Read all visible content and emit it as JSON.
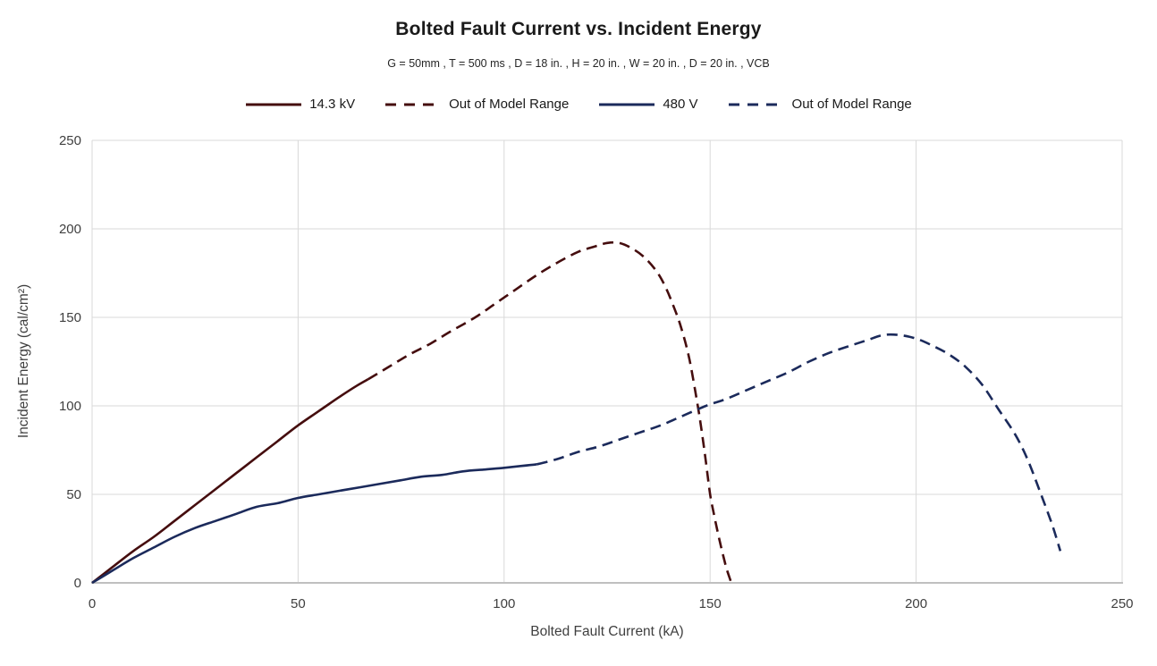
{
  "chart_data": {
    "type": "line",
    "title": "Bolted Fault Current vs. Incident Energy",
    "subtitle": "G = 50mm , T = 500 ms , D = 18 in. , H = 20 in. , W = 20 in. , D = 20 in. , VCB",
    "xlabel": "Bolted Fault Current (kA)",
    "ylabel": "Incident Energy (cal/cm²)",
    "xlim": [
      0,
      250
    ],
    "ylim": [
      0,
      250
    ],
    "xticks": [
      0,
      50,
      100,
      150,
      200,
      250
    ],
    "yticks": [
      0,
      50,
      100,
      150,
      200,
      250
    ],
    "grid": true,
    "legend_position": "top",
    "colors": {
      "dark_red": "#450d0e",
      "dark_blue": "#1b2a5b",
      "gridline": "#d9d9d9",
      "axis_line": "#c0c0c0",
      "tick_text": "#3f3f3f",
      "title_text": "#1a1a1a"
    },
    "series": [
      {
        "name": "14.3 kV",
        "color_key": "dark_red",
        "style": "solid",
        "points": [
          [
            0,
            0
          ],
          [
            5,
            9
          ],
          [
            10,
            18
          ],
          [
            15,
            26
          ],
          [
            20,
            35
          ],
          [
            25,
            44
          ],
          [
            30,
            53
          ],
          [
            35,
            62
          ],
          [
            40,
            71
          ],
          [
            45,
            80
          ],
          [
            50,
            89
          ],
          [
            55,
            97
          ],
          [
            60,
            105
          ],
          [
            64,
            111
          ],
          [
            67,
            115
          ]
        ]
      },
      {
        "name": "Out of Model Range",
        "color_key": "dark_red",
        "style": "dashed",
        "points": [
          [
            67,
            115
          ],
          [
            72,
            122
          ],
          [
            77,
            129
          ],
          [
            82,
            135
          ],
          [
            87,
            142
          ],
          [
            93,
            150
          ],
          [
            98,
            158
          ],
          [
            103,
            166
          ],
          [
            108,
            174
          ],
          [
            113,
            181
          ],
          [
            118,
            187
          ],
          [
            122,
            190
          ],
          [
            125,
            192
          ],
          [
            128,
            192
          ],
          [
            131,
            189
          ],
          [
            134,
            184
          ],
          [
            137,
            176
          ],
          [
            139,
            168
          ],
          [
            141,
            157
          ],
          [
            143,
            144
          ],
          [
            145,
            126
          ],
          [
            147,
            100
          ],
          [
            148,
            85
          ],
          [
            149,
            68
          ],
          [
            150,
            50
          ],
          [
            151,
            38
          ],
          [
            152,
            27
          ],
          [
            153,
            17
          ],
          [
            154,
            8
          ],
          [
            155,
            1
          ]
        ]
      },
      {
        "name": "480 V",
        "color_key": "dark_blue",
        "style": "solid",
        "points": [
          [
            0,
            0
          ],
          [
            5,
            7
          ],
          [
            10,
            14
          ],
          [
            15,
            20
          ],
          [
            20,
            26
          ],
          [
            25,
            31
          ],
          [
            30,
            35
          ],
          [
            35,
            39
          ],
          [
            40,
            43
          ],
          [
            45,
            45
          ],
          [
            50,
            48
          ],
          [
            55,
            50
          ],
          [
            60,
            52
          ],
          [
            65,
            54
          ],
          [
            70,
            56
          ],
          [
            75,
            58
          ],
          [
            80,
            60
          ],
          [
            85,
            61
          ],
          [
            90,
            63
          ],
          [
            95,
            64
          ],
          [
            100,
            65
          ],
          [
            104,
            66
          ],
          [
            108,
            67
          ]
        ]
      },
      {
        "name": "Out of Model Range",
        "color_key": "dark_blue",
        "style": "dashed",
        "points": [
          [
            108,
            67
          ],
          [
            113,
            70
          ],
          [
            118,
            74
          ],
          [
            123,
            77
          ],
          [
            128,
            81
          ],
          [
            133,
            85
          ],
          [
            138,
            89
          ],
          [
            143,
            94
          ],
          [
            149,
            100
          ],
          [
            154,
            104
          ],
          [
            159,
            109
          ],
          [
            164,
            114
          ],
          [
            169,
            119
          ],
          [
            174,
            125
          ],
          [
            179,
            130
          ],
          [
            184,
            134
          ],
          [
            188,
            137
          ],
          [
            192,
            140
          ],
          [
            196,
            140
          ],
          [
            200,
            138
          ],
          [
            204,
            134
          ],
          [
            208,
            129
          ],
          [
            212,
            122
          ],
          [
            216,
            112
          ],
          [
            220,
            98
          ],
          [
            224,
            84
          ],
          [
            227,
            70
          ],
          [
            230,
            52
          ],
          [
            233,
            33
          ],
          [
            235,
            18
          ]
        ]
      }
    ]
  }
}
